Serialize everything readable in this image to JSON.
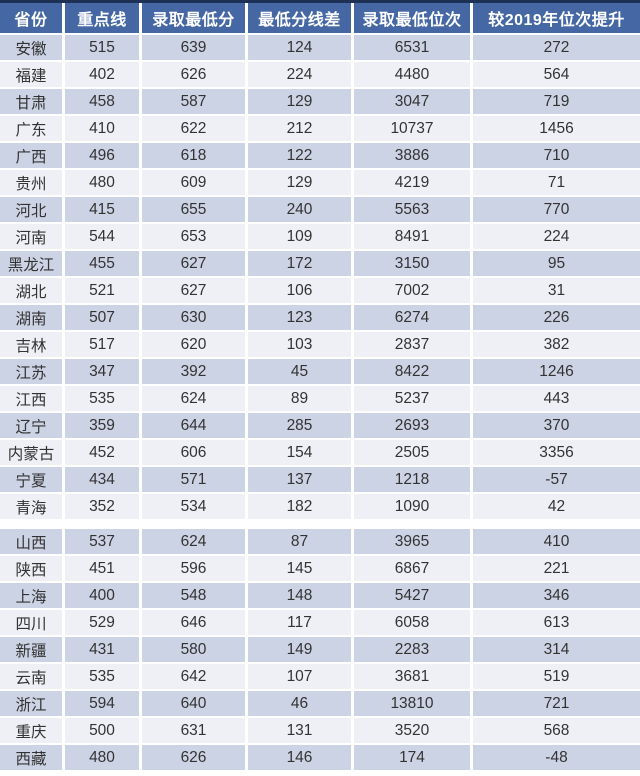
{
  "colors": {
    "top_line": "#1d3055",
    "header_bg": "#4568a4",
    "header_fg": "#ffffff",
    "row_odd_bg": "#ccd3e5",
    "row_even_bg": "#eef0f6",
    "body_fg": "#333333"
  },
  "chart_data": {
    "type": "table",
    "columns": [
      "省份",
      "重点线",
      "录取最低分",
      "最低分线差",
      "录取最低位次",
      "较2019年位次提升"
    ],
    "rows": [
      [
        "安徽",
        "515",
        "639",
        "124",
        "6531",
        "272"
      ],
      [
        "福建",
        "402",
        "626",
        "224",
        "4480",
        "564"
      ],
      [
        "甘肃",
        "458",
        "587",
        "129",
        "3047",
        "719"
      ],
      [
        "广东",
        "410",
        "622",
        "212",
        "10737",
        "1456"
      ],
      [
        "广西",
        "496",
        "618",
        "122",
        "3886",
        "710"
      ],
      [
        "贵州",
        "480",
        "609",
        "129",
        "4219",
        "71"
      ],
      [
        "河北",
        "415",
        "655",
        "240",
        "5563",
        "770"
      ],
      [
        "河南",
        "544",
        "653",
        "109",
        "8491",
        "224"
      ],
      [
        "黑龙江",
        "455",
        "627",
        "172",
        "3150",
        "95"
      ],
      [
        "湖北",
        "521",
        "627",
        "106",
        "7002",
        "31"
      ],
      [
        "湖南",
        "507",
        "630",
        "123",
        "6274",
        "226"
      ],
      [
        "吉林",
        "517",
        "620",
        "103",
        "2837",
        "382"
      ],
      [
        "江苏",
        "347",
        "392",
        "45",
        "8422",
        "1246"
      ],
      [
        "江西",
        "535",
        "624",
        "89",
        "5237",
        "443"
      ],
      [
        "辽宁",
        "359",
        "644",
        "285",
        "2693",
        "370"
      ],
      [
        "内蒙古",
        "452",
        "606",
        "154",
        "2505",
        "3356"
      ],
      [
        "宁夏",
        "434",
        "571",
        "137",
        "1218",
        "-57"
      ],
      [
        "青海",
        "352",
        "534",
        "182",
        "1090",
        "42"
      ],
      [
        "山西",
        "537",
        "624",
        "87",
        "3965",
        "410"
      ],
      [
        "陕西",
        "451",
        "596",
        "145",
        "6867",
        "221"
      ],
      [
        "上海",
        "400",
        "548",
        "148",
        "5427",
        "346"
      ],
      [
        "四川",
        "529",
        "646",
        "117",
        "6058",
        "613"
      ],
      [
        "新疆",
        "431",
        "580",
        "149",
        "2283",
        "314"
      ],
      [
        "云南",
        "535",
        "642",
        "107",
        "3681",
        "519"
      ],
      [
        "浙江",
        "594",
        "640",
        "46",
        "13810",
        "721"
      ],
      [
        "重庆",
        "500",
        "631",
        "131",
        "3520",
        "568"
      ],
      [
        "西藏",
        "480",
        "626",
        "146",
        "174",
        "-48"
      ]
    ],
    "group_break_after_row": 18,
    "layout": {
      "header_position": "top",
      "stripe_pattern": "alternating",
      "first_data_row_stripe": "odd"
    }
  }
}
